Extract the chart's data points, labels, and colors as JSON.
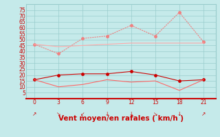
{
  "x": [
    0,
    3,
    6,
    9,
    12,
    15,
    18,
    21
  ],
  "line_rafales": [
    46,
    38,
    51,
    53,
    62,
    53,
    73,
    48
  ],
  "line_moy_smooth": [
    46,
    44,
    45,
    46,
    47,
    47,
    47,
    47
  ],
  "line_vent_moy": [
    16,
    20,
    21,
    21,
    23,
    20,
    15,
    16
  ],
  "line_vent_min": [
    16,
    10,
    12,
    16,
    14,
    15,
    7,
    16
  ],
  "line_rafales_color": "#f08080",
  "line_moy_smooth_color": "#ffaaaa",
  "line_vent_moy_color": "#cc0000",
  "line_vent_min_color": "#ff6666",
  "bg_color": "#c5eaea",
  "grid_color": "#99cccc",
  "xlabel": "Vent moyen/en rafales ( km/h )",
  "xlabel_color": "#cc0000",
  "tick_color": "#cc0000",
  "ylim": [
    0,
    80
  ],
  "yticks": [
    5,
    10,
    15,
    20,
    25,
    30,
    35,
    40,
    45,
    50,
    55,
    60,
    65,
    70,
    75
  ],
  "xticks": [
    0,
    3,
    6,
    9,
    12,
    15,
    18,
    21
  ],
  "arrow_chars": [
    "↗",
    "↘",
    "↙",
    "↓",
    "↓",
    "↘",
    "↓",
    "↗"
  ]
}
